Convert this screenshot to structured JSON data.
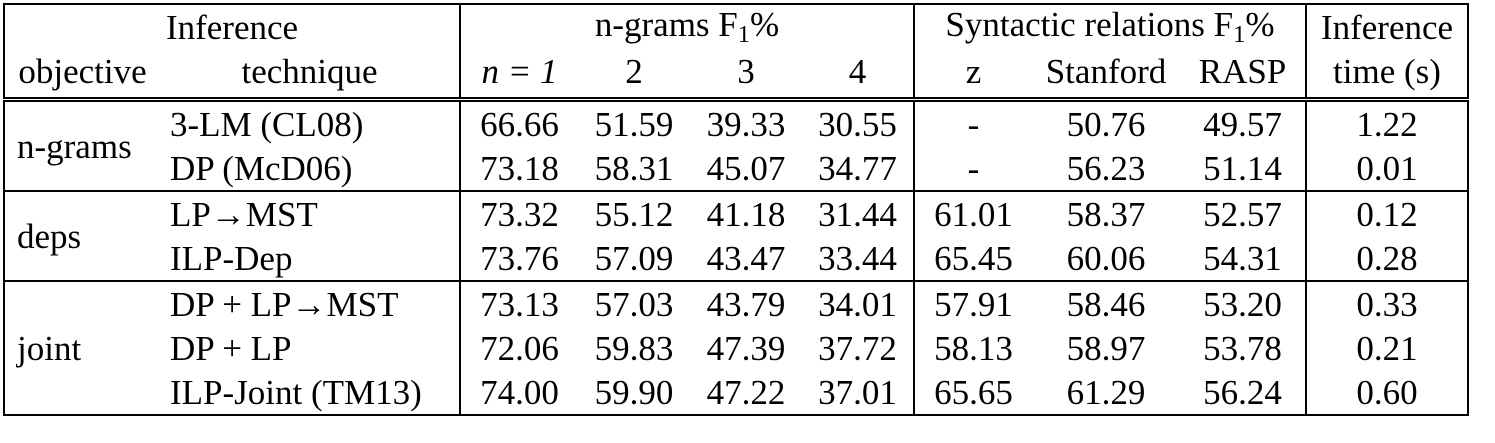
{
  "header": {
    "row1": {
      "inference": "Inference",
      "ngrams": "n-grams  F",
      "ngrams_sub": "1",
      "ngrams_pct": "%",
      "syntactic": "Syntactic relations F",
      "syntactic_sub": "1",
      "syntactic_pct": "%",
      "inference_time_top": "Inference"
    },
    "row2": {
      "objective": "objective",
      "technique": "technique",
      "n1": "n = 1",
      "n2": "2",
      "n3": "3",
      "n4": "4",
      "z": "z",
      "stanford": "Stanford",
      "rasp": "RASP",
      "time": "time (s)"
    }
  },
  "groups": [
    {
      "objective": "n-grams",
      "rows": [
        {
          "technique": "3-LM (CL08)",
          "n1": "66.66",
          "n2": "51.59",
          "n3": "39.33",
          "n4": "30.55",
          "z": "-",
          "stanford": "50.76",
          "rasp": "49.57",
          "time": "1.22",
          "bold": []
        },
        {
          "technique": "DP (McD06)",
          "n1": "73.18",
          "n2": "58.31",
          "n3": "45.07",
          "n4": "34.77",
          "z": "-",
          "stanford": "56.23",
          "rasp": "51.14",
          "time": "0.01",
          "bold": []
        }
      ]
    },
    {
      "objective": "deps",
      "rows": [
        {
          "technique": "LP→MST",
          "n1": "73.32",
          "n2": "55.12",
          "n3": "41.18",
          "n4": "31.44",
          "z": "61.01",
          "stanford": "58.37",
          "rasp": "52.57",
          "time": "0.12",
          "bold": []
        },
        {
          "technique": "ILP-Dep",
          "n1": "73.76",
          "n2": "57.09",
          "n3": "43.47",
          "n4": "33.44",
          "z": "65.45",
          "stanford": "60.06",
          "rasp": "54.31",
          "time": "0.28",
          "bold": [
            "n1",
            "z"
          ]
        }
      ]
    },
    {
      "objective": "joint",
      "rows": [
        {
          "technique": "DP + LP→MST",
          "n1": "73.13",
          "n2": "57.03",
          "n3": "43.79",
          "n4": "34.01",
          "z": "57.91",
          "stanford": "58.46",
          "rasp": "53.20",
          "time": "0.33",
          "bold": []
        },
        {
          "technique": "DP + LP",
          "n1": "72.06",
          "n2": "59.83",
          "n3": "47.39",
          "n4": "37.72",
          "z": "58.13",
          "stanford": "58.97",
          "rasp": "53.78",
          "time": "0.21",
          "bold": [
            "n2",
            "n3",
            "n4"
          ]
        },
        {
          "technique": "ILP-Joint (TM13)",
          "n1": "74.00",
          "n2": "59.90",
          "n3": "47.22",
          "n4": "37.01",
          "z": "65.65",
          "stanford": "61.29",
          "rasp": "56.24",
          "time": "0.60",
          "bold": [
            "n1",
            "n2",
            "n3",
            "z",
            "stanford",
            "rasp"
          ]
        }
      ]
    }
  ]
}
